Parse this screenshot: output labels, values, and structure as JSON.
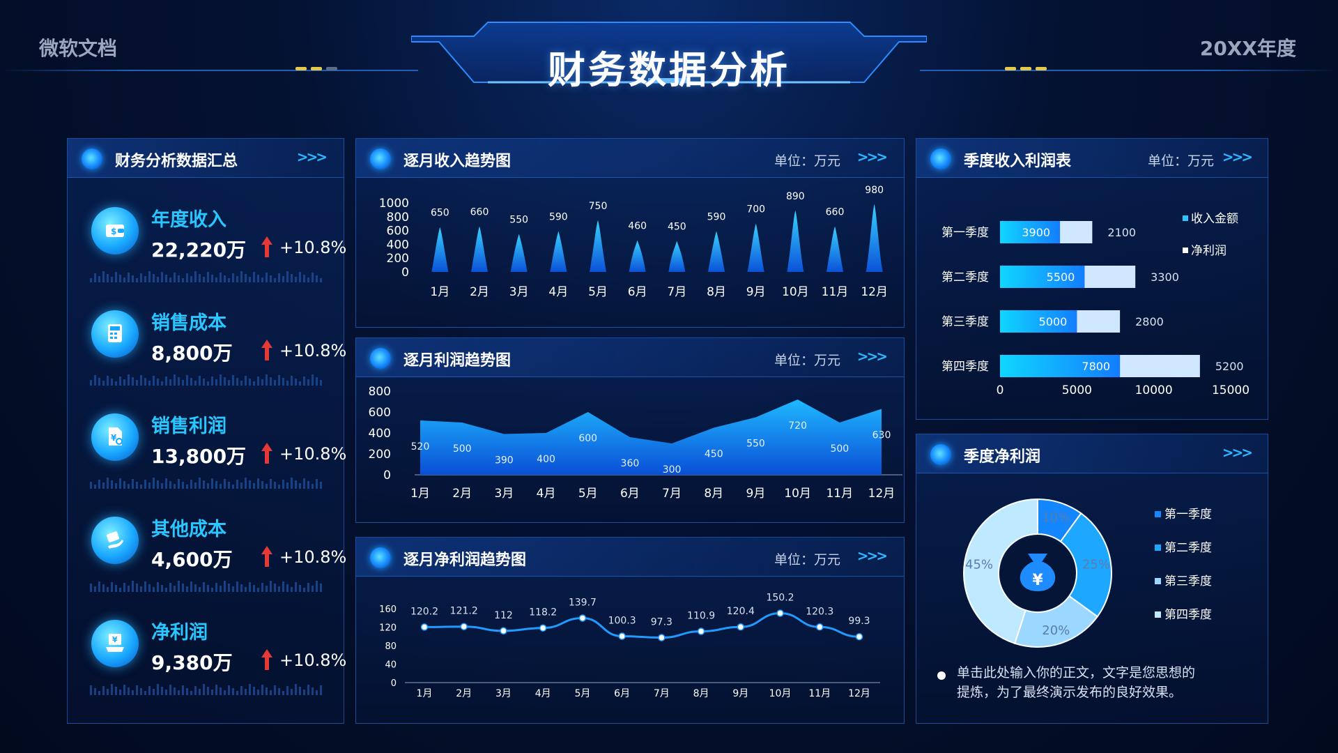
{
  "header": {
    "left_text": "微软文档",
    "title": "财务数据分析",
    "right_text": "20XX年度"
  },
  "colors": {
    "accent": "#29c6ff",
    "panel_border": "#1f6fd8",
    "up_arrow": "#e53935",
    "bar_light": "#cfe7ff"
  },
  "summary_panel": {
    "title": "财务分析数据汇总",
    "arrows": ">>>",
    "kpis": [
      {
        "label": "年度收入",
        "value": "22,220万",
        "change": "+10.8%",
        "icon": "wallet-dollar-icon"
      },
      {
        "label": "销售成本",
        "value": "8,800万",
        "change": "+10.8%",
        "icon": "calculator-icon"
      },
      {
        "label": "销售利润",
        "value": "13,800万",
        "change": "+10.8%",
        "icon": "document-yuan-icon"
      },
      {
        "label": "其他成本",
        "value": "4,600万",
        "change": "+10.8%",
        "icon": "hand-money-icon"
      },
      {
        "label": "净利润",
        "value": "9,380万",
        "change": "+10.8%",
        "icon": "cash-hand-icon"
      }
    ]
  },
  "revenue_panel": {
    "title": "逐月收入趋势图",
    "unit": "单位：万元",
    "arrows": ">>>"
  },
  "profit_panel": {
    "title": "逐月利润趋势图",
    "unit": "单位：万元",
    "arrows": ">>>"
  },
  "netprofit_panel": {
    "title": "逐月净利润趋势图",
    "unit": "单位：万元",
    "arrows": ">>>"
  },
  "quarter_table_panel": {
    "title": "季度收入利润表",
    "unit": "单位：万元",
    "arrows": ">>>"
  },
  "quarter_net_panel": {
    "title": "季度净利润",
    "arrows": ">>>",
    "center_icon": "money-bag-yuan-icon",
    "center_symbol": "¥",
    "note": "单击此处输入你的正文，文字是您思想的提炼，为了最终演示发布的良好效果。"
  },
  "chart_data": [
    {
      "id": "monthly_revenue",
      "type": "area",
      "categories": [
        "1月",
        "2月",
        "3月",
        "4月",
        "5月",
        "6月",
        "7月",
        "8月",
        "9月",
        "10月",
        "11月",
        "12月"
      ],
      "values": [
        650,
        660,
        550,
        590,
        750,
        460,
        450,
        590,
        700,
        890,
        660,
        980
      ],
      "yticks": [
        0,
        200,
        400,
        600,
        800,
        1000
      ],
      "ylim": [
        0,
        1000
      ]
    },
    {
      "id": "monthly_profit",
      "type": "area",
      "categories": [
        "1月",
        "2月",
        "3月",
        "4月",
        "5月",
        "6月",
        "7月",
        "8月",
        "9月",
        "10月",
        "11月",
        "12月"
      ],
      "values": [
        520,
        500,
        390,
        400,
        600,
        360,
        300,
        450,
        550,
        720,
        500,
        630
      ],
      "yticks": [
        0,
        200,
        400,
        600,
        800
      ],
      "ylim": [
        0,
        800
      ]
    },
    {
      "id": "monthly_net_profit",
      "type": "line",
      "categories": [
        "1月",
        "2月",
        "3月",
        "4月",
        "5月",
        "6月",
        "7月",
        "8月",
        "9月",
        "10月",
        "11月",
        "12月"
      ],
      "values": [
        120.2,
        121.2,
        112,
        118.2,
        139.7,
        100.3,
        97.3,
        110.9,
        120.4,
        150.2,
        120.3,
        99.3
      ],
      "yticks": [
        0,
        40,
        80,
        120,
        160
      ],
      "ylim": [
        0,
        160
      ]
    },
    {
      "id": "quarterly_revenue_profit",
      "type": "bar",
      "orientation": "horizontal",
      "stacked": true,
      "categories": [
        "第一季度",
        "第二季度",
        "第三季度",
        "第四季度"
      ],
      "series": [
        {
          "name": "收入金额",
          "values": [
            3900,
            5500,
            5000,
            7800
          ],
          "color": "#19c2ff"
        },
        {
          "name": "净利润",
          "values": [
            2100,
            3300,
            2800,
            5200
          ],
          "color": "#cfe7ff"
        }
      ],
      "xticks": [
        0,
        5000,
        10000,
        15000
      ],
      "xlim": [
        0,
        15000
      ],
      "legend_position": "right"
    },
    {
      "id": "quarterly_net_profit",
      "type": "pie",
      "donut": true,
      "labels": [
        "第一季度",
        "第二季度",
        "第三季度",
        "第四季度"
      ],
      "values": [
        10,
        25,
        20,
        45
      ],
      "value_labels": [
        "10%",
        "25%",
        "20%",
        "45%"
      ],
      "colors": [
        "#1487ff",
        "#1ea7ff",
        "#9bd7ff",
        "#bfe9ff"
      ],
      "legend_position": "right"
    }
  ]
}
